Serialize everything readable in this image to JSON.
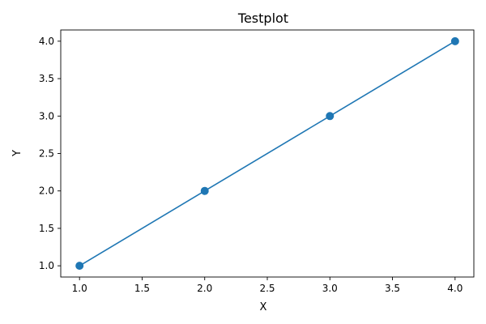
{
  "chart_data": {
    "type": "line",
    "title": "Testplot",
    "xlabel": "X",
    "ylabel": "Y",
    "x": [
      1.0,
      2.0,
      3.0,
      4.0
    ],
    "series": [
      {
        "values": [
          1.0,
          2.0,
          3.0,
          4.0
        ],
        "color": "#1f77b4",
        "marker": "circle"
      }
    ],
    "xlim": [
      0.85,
      4.15
    ],
    "ylim": [
      0.85,
      4.15
    ],
    "xticks": [
      1.0,
      1.5,
      2.0,
      2.5,
      3.0,
      3.5,
      4.0
    ],
    "yticks": [
      1.0,
      1.5,
      2.0,
      2.5,
      3.0,
      3.5,
      4.0
    ],
    "xtick_labels": [
      "1.0",
      "1.5",
      "2.0",
      "2.5",
      "3.0",
      "3.5",
      "4.0"
    ],
    "ytick_labels": [
      "1.0",
      "1.5",
      "2.0",
      "2.5",
      "3.0",
      "3.5",
      "4.0"
    ],
    "grid": false,
    "legend": false
  }
}
